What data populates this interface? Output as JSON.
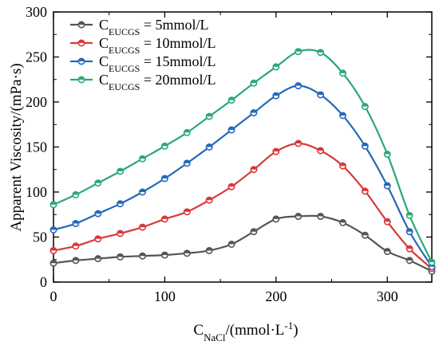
{
  "chart_data": {
    "type": "line",
    "title": "",
    "xlabel": {
      "main": "C",
      "sub": "NaCl",
      "tail": "/(mmol·L",
      "sup": "-1",
      "end": ")"
    },
    "ylabel": "Apparent Viscosity/(mPa·s)",
    "xlim": [
      0,
      340
    ],
    "ylim": [
      0,
      300
    ],
    "xticks": [
      0,
      100,
      200,
      300
    ],
    "xtick_labels": [
      "0",
      "100",
      "200",
      "300"
    ],
    "yticks": [
      0,
      50,
      100,
      150,
      200,
      250,
      300
    ],
    "ytick_labels": [
      "0",
      "50",
      "100",
      "150",
      "200",
      "250",
      "300"
    ],
    "grid": false,
    "legend_position": "top-left",
    "x": [
      0,
      20,
      40,
      60,
      80,
      100,
      120,
      140,
      160,
      180,
      200,
      220,
      240,
      260,
      280,
      300,
      320,
      340
    ],
    "series": [
      {
        "name": "C",
        "name_sub": "EUCGS",
        "name_tail": " = 5mmol/L",
        "color": "#555555",
        "values": [
          21,
          24,
          26,
          28,
          29,
          30,
          32,
          35,
          42,
          56,
          70,
          73,
          73,
          66,
          52,
          34,
          24,
          12
        ]
      },
      {
        "name": "C",
        "name_sub": "EUCGS",
        "name_tail": " = 10mmol/L",
        "color": "#d9383a",
        "values": [
          35,
          40,
          48,
          54,
          61,
          70,
          78,
          91,
          106,
          125,
          145,
          154,
          146,
          129,
          101,
          67,
          37,
          15
        ]
      },
      {
        "name": "C",
        "name_sub": "EUCGS",
        "name_tail": " = 15mmol/L",
        "color": "#2469b9",
        "values": [
          58,
          65,
          76,
          87,
          100,
          115,
          132,
          150,
          169,
          188,
          207,
          218,
          208,
          185,
          151,
          107,
          56,
          17
        ]
      },
      {
        "name": "C",
        "name_sub": "EUCGS",
        "name_tail": " = 20mmol/L",
        "color": "#2ba879",
        "values": [
          86,
          97,
          110,
          123,
          137,
          151,
          166,
          184,
          202,
          221,
          239,
          256,
          255,
          232,
          195,
          142,
          74,
          22
        ]
      }
    ]
  }
}
